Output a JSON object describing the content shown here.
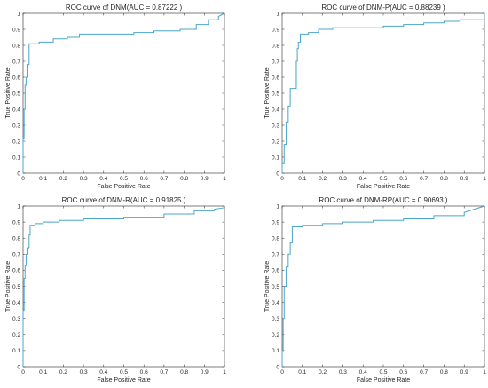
{
  "chart_data": [
    {
      "type": "line",
      "title": "ROC curve of DNM(AUC = 0.87222 )",
      "xlabel": "False Positive Rate",
      "ylabel": "True Positive Rate",
      "xlim": [
        0,
        1
      ],
      "ylim": [
        0,
        1
      ],
      "xticks": [
        "0",
        "0.1",
        "0.2",
        "0.3",
        "0.4",
        "0.5",
        "0.6",
        "0.7",
        "0.8",
        "0.9",
        "1"
      ],
      "yticks": [
        "0",
        "0.1",
        "0.2",
        "0.3",
        "0.4",
        "0.5",
        "0.6",
        "0.7",
        "0.8",
        "0.9",
        "1"
      ],
      "grid": false,
      "color": "#4ba5c8",
      "series": [
        {
          "x": [
            0,
            0,
            0.005,
            0.005,
            0.01,
            0.01,
            0.015,
            0.015,
            0.02,
            0.02,
            0.03,
            0.03,
            0.08,
            0.08,
            0.15,
            0.15,
            0.22,
            0.22,
            0.28,
            0.28,
            0.55,
            0.55,
            0.65,
            0.65,
            0.78,
            0.78,
            0.86,
            0.86,
            0.92,
            0.92,
            0.97,
            0.97,
            1
          ],
          "y": [
            0,
            0.22,
            0.22,
            0.4,
            0.4,
            0.55,
            0.55,
            0.6,
            0.6,
            0.68,
            0.68,
            0.81,
            0.81,
            0.82,
            0.82,
            0.84,
            0.84,
            0.85,
            0.85,
            0.87,
            0.87,
            0.88,
            0.88,
            0.89,
            0.89,
            0.9,
            0.9,
            0.93,
            0.93,
            0.96,
            0.96,
            0.98,
            1
          ]
        }
      ]
    },
    {
      "type": "line",
      "title": "ROC curve of DNM-P(AUC = 0.88239 )",
      "xlabel": "False Positive Rate",
      "ylabel": "True Positive Rate",
      "xlim": [
        0,
        1
      ],
      "ylim": [
        0,
        1
      ],
      "xticks": [
        "0",
        "0.1",
        "0.2",
        "0.3",
        "0.4",
        "0.5",
        "0.6",
        "0.7",
        "0.8",
        "0.9",
        "1"
      ],
      "yticks": [
        "0",
        "0.1",
        "0.2",
        "0.3",
        "0.4",
        "0.5",
        "0.6",
        "0.7",
        "0.8",
        "0.9",
        "1"
      ],
      "grid": false,
      "color": "#4ba5c8",
      "series": [
        {
          "x": [
            0,
            0,
            0.01,
            0.01,
            0.02,
            0.02,
            0.03,
            0.03,
            0.04,
            0.04,
            0.07,
            0.07,
            0.075,
            0.075,
            0.08,
            0.08,
            0.09,
            0.09,
            0.13,
            0.13,
            0.18,
            0.18,
            0.25,
            0.25,
            0.5,
            0.5,
            0.6,
            0.6,
            0.7,
            0.7,
            0.8,
            0.8,
            0.88,
            0.88,
            1,
            1
          ],
          "y": [
            0,
            0.06,
            0.06,
            0.18,
            0.18,
            0.32,
            0.32,
            0.42,
            0.42,
            0.53,
            0.53,
            0.7,
            0.7,
            0.78,
            0.78,
            0.82,
            0.82,
            0.87,
            0.87,
            0.88,
            0.88,
            0.9,
            0.9,
            0.91,
            0.91,
            0.92,
            0.92,
            0.93,
            0.93,
            0.94,
            0.94,
            0.95,
            0.95,
            0.96,
            0.96,
            1
          ]
        }
      ]
    },
    {
      "type": "line",
      "title": "ROC curve of DNM-R(AUC = 0.91825 )",
      "xlabel": "False Positive Rate",
      "ylabel": "True Positive Rate",
      "xlim": [
        0,
        1
      ],
      "ylim": [
        0,
        1
      ],
      "xticks": [
        "0",
        "0.1",
        "0.2",
        "0.3",
        "0.4",
        "0.5",
        "0.6",
        "0.7",
        "0.8",
        "0.9",
        "1"
      ],
      "yticks": [
        "0",
        "0.1",
        "0.2",
        "0.3",
        "0.4",
        "0.5",
        "0.6",
        "0.7",
        "0.8",
        "0.9",
        "1"
      ],
      "grid": false,
      "color": "#4ba5c8",
      "series": [
        {
          "x": [
            0,
            0,
            0.005,
            0.005,
            0.01,
            0.01,
            0.015,
            0.015,
            0.02,
            0.02,
            0.03,
            0.03,
            0.035,
            0.035,
            0.06,
            0.06,
            0.1,
            0.1,
            0.18,
            0.18,
            0.3,
            0.3,
            0.5,
            0.5,
            0.7,
            0.7,
            0.85,
            0.85,
            0.95,
            0.95,
            1
          ],
          "y": [
            0,
            0.35,
            0.35,
            0.55,
            0.55,
            0.63,
            0.63,
            0.7,
            0.7,
            0.74,
            0.74,
            0.82,
            0.82,
            0.88,
            0.88,
            0.89,
            0.89,
            0.9,
            0.9,
            0.91,
            0.91,
            0.92,
            0.92,
            0.93,
            0.93,
            0.95,
            0.95,
            0.97,
            0.97,
            0.98,
            0.99
          ]
        }
      ]
    },
    {
      "type": "line",
      "title": "ROC curve of DNM-RP(AUC = 0.90693 )",
      "xlabel": "False Positive Rate",
      "ylabel": "True Positive Rate",
      "xlim": [
        0,
        1
      ],
      "ylim": [
        0,
        1
      ],
      "xticks": [
        "0",
        "0.1",
        "0.2",
        "0.3",
        "0.4",
        "0.5",
        "0.6",
        "0.7",
        "0.8",
        "0.9",
        "1"
      ],
      "yticks": [
        "0",
        "0.1",
        "0.2",
        "0.3",
        "0.4",
        "0.5",
        "0.6",
        "0.7",
        "0.8",
        "0.9",
        "1"
      ],
      "grid": false,
      "color": "#4ba5c8",
      "series": [
        {
          "x": [
            0,
            0,
            0.005,
            0.005,
            0.01,
            0.01,
            0.02,
            0.02,
            0.03,
            0.03,
            0.04,
            0.04,
            0.05,
            0.05,
            0.1,
            0.1,
            0.2,
            0.2,
            0.3,
            0.3,
            0.45,
            0.45,
            0.6,
            0.6,
            0.75,
            0.75,
            0.9,
            0.9,
            1
          ],
          "y": [
            0,
            0.1,
            0.1,
            0.3,
            0.3,
            0.5,
            0.5,
            0.62,
            0.62,
            0.7,
            0.7,
            0.77,
            0.77,
            0.87,
            0.87,
            0.88,
            0.88,
            0.89,
            0.89,
            0.9,
            0.9,
            0.91,
            0.91,
            0.92,
            0.92,
            0.94,
            0.94,
            0.96,
            1
          ]
        }
      ]
    }
  ]
}
